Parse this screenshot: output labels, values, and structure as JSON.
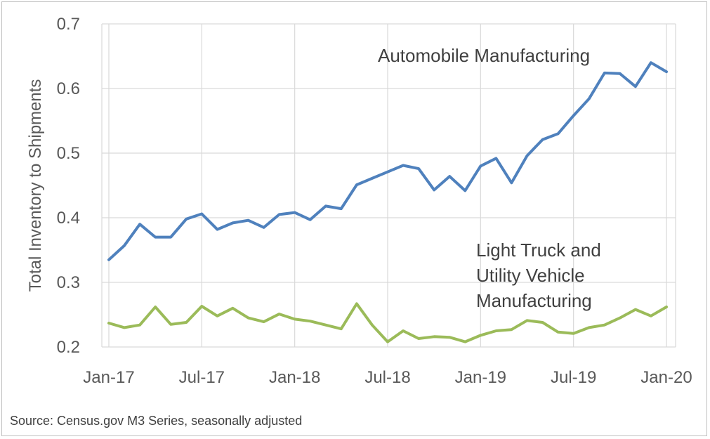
{
  "chart_data": {
    "type": "line",
    "title": "",
    "ylabel": "Total Inventory to Shipments",
    "xlabel": "",
    "ylim": [
      0.2,
      0.7
    ],
    "yticks": [
      "0.2",
      "0.3",
      "0.4",
      "0.5",
      "0.6",
      "0.7"
    ],
    "xtick_labels": [
      "Jan-17",
      "Jul-17",
      "Jan-18",
      "Jul-18",
      "Jan-19",
      "Jul-19",
      "Jan-20"
    ],
    "x": [
      "Jan-17",
      "Feb-17",
      "Mar-17",
      "Apr-17",
      "May-17",
      "Jun-17",
      "Jul-17",
      "Aug-17",
      "Sep-17",
      "Oct-17",
      "Nov-17",
      "Dec-17",
      "Jan-18",
      "Feb-18",
      "Mar-18",
      "Apr-18",
      "May-18",
      "Jun-18",
      "Jul-18",
      "Aug-18",
      "Sep-18",
      "Oct-18",
      "Nov-18",
      "Dec-18",
      "Jan-19",
      "Feb-19",
      "Mar-19",
      "Apr-19",
      "May-19",
      "Jun-19",
      "Jul-19",
      "Aug-19",
      "Sep-19",
      "Oct-19",
      "Nov-19",
      "Dec-19",
      "Jan-20"
    ],
    "grid": true,
    "series": [
      {
        "name": "Automobile Manufacturing",
        "color": "#4f81bd",
        "values": [
          0.335,
          0.357,
          0.39,
          0.37,
          0.37,
          0.398,
          0.406,
          0.382,
          0.392,
          0.396,
          0.385,
          0.405,
          0.408,
          0.397,
          0.418,
          0.414,
          0.451,
          0.461,
          0.471,
          0.481,
          0.476,
          0.443,
          0.464,
          0.442,
          0.48,
          0.492,
          0.454,
          0.496,
          0.521,
          0.53,
          0.558,
          0.584,
          0.624,
          0.623,
          0.603,
          0.64,
          0.626
        ]
      },
      {
        "name": "Light Truck and Utility Vehicle Manufacturing",
        "name_lines": [
          "Light Truck and",
          "Utility Vehicle",
          "Manufacturing"
        ],
        "color": "#9bbb59",
        "values": [
          0.237,
          0.23,
          0.234,
          0.262,
          0.235,
          0.238,
          0.263,
          0.248,
          0.26,
          0.245,
          0.239,
          0.251,
          0.243,
          0.24,
          0.234,
          0.228,
          0.267,
          0.234,
          0.208,
          0.225,
          0.213,
          0.216,
          0.215,
          0.208,
          0.218,
          0.225,
          0.227,
          0.241,
          0.238,
          0.223,
          0.221,
          0.23,
          0.234,
          0.245,
          0.258,
          0.248,
          0.262
        ]
      }
    ]
  },
  "source": "Source: Census.gov M3 Series, seasonally adjusted"
}
